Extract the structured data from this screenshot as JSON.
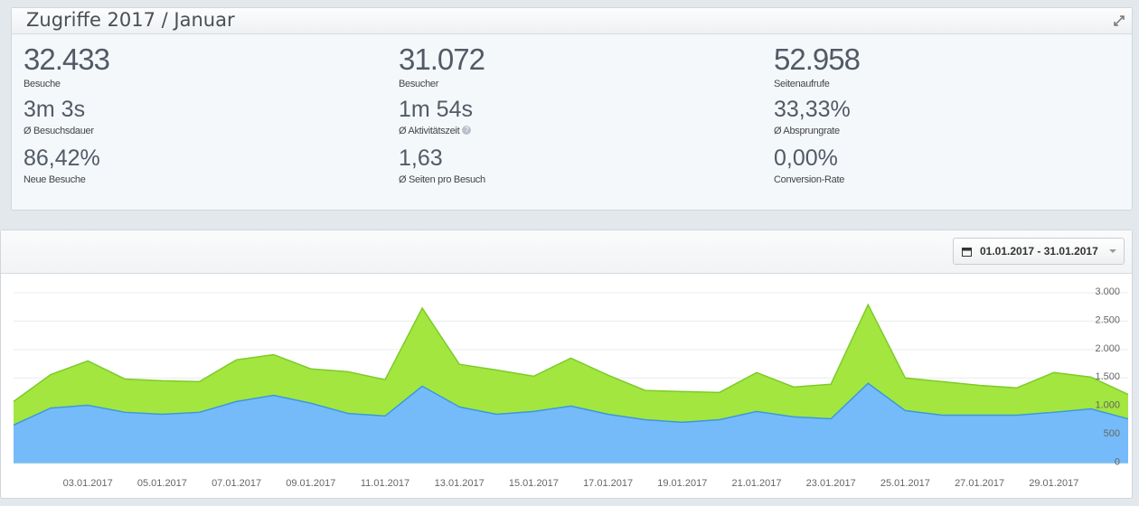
{
  "header": {
    "title": "Zugriffe 2017 / Januar"
  },
  "stats": [
    {
      "value": "32.433",
      "label": "Besuche"
    },
    {
      "value": "31.072",
      "label": "Besucher"
    },
    {
      "value": "52.958",
      "label": "Seitenaufrufe"
    },
    {
      "value": "3m 3s",
      "label": "Ø Besuchsdauer"
    },
    {
      "value": "1m 54s",
      "label": "Ø Aktivitätszeit"
    },
    {
      "value": "33,33%",
      "label": "Ø Absprungrate"
    },
    {
      "value": "86,42%",
      "label": "Neue Besuche"
    },
    {
      "value": "1,63",
      "label": "Ø Seiten pro Besuch"
    },
    {
      "value": "0,00%",
      "label": "Conversion-Rate"
    }
  ],
  "date_range": "01.01.2017 - 31.01.2017",
  "chart_data": {
    "type": "area",
    "categories": [
      null,
      null,
      "03.01.2017",
      null,
      "05.01.2017",
      null,
      "07.01.2017",
      null,
      "09.01.2017",
      null,
      "11.01.2017",
      null,
      "13.01.2017",
      null,
      "15.01.2017",
      null,
      "17.01.2017",
      null,
      "19.01.2017",
      null,
      "21.01.2017",
      null,
      "23.01.2017",
      null,
      "25.01.2017",
      null,
      "27.01.2017",
      null,
      "29.01.2017",
      null,
      null
    ],
    "series": [
      {
        "color": "#a3e63f",
        "values": [
          1085,
          1560,
          1800,
          1480,
          1450,
          1435,
          1820,
          1910,
          1660,
          1610,
          1470,
          2730,
          1740,
          1640,
          1530,
          1850,
          1550,
          1280,
          1260,
          1245,
          1595,
          1340,
          1390,
          2790,
          1500,
          1435,
          1370,
          1325,
          1595,
          1515,
          1210
        ]
      },
      {
        "color": "#75bbfa",
        "values": [
          670,
          970,
          1020,
          895,
          860,
          895,
          1085,
          1195,
          1055,
          875,
          830,
          1355,
          990,
          860,
          910,
          1005,
          860,
          765,
          720,
          765,
          910,
          815,
          780,
          1405,
          925,
          845,
          845,
          845,
          895,
          955,
          780
        ]
      }
    ],
    "ylim": [
      -150,
      3350
    ],
    "yticks": [
      0,
      500,
      {
        "value": 1000,
        "label": "1.000"
      },
      {
        "value": 1500,
        "label": "1.500"
      },
      {
        "value": 2000,
        "label": "2.000"
      },
      {
        "value": 2500,
        "label": "2.500"
      },
      {
        "value": 3000,
        "label": "3.000"
      }
    ],
    "grid": true
  }
}
